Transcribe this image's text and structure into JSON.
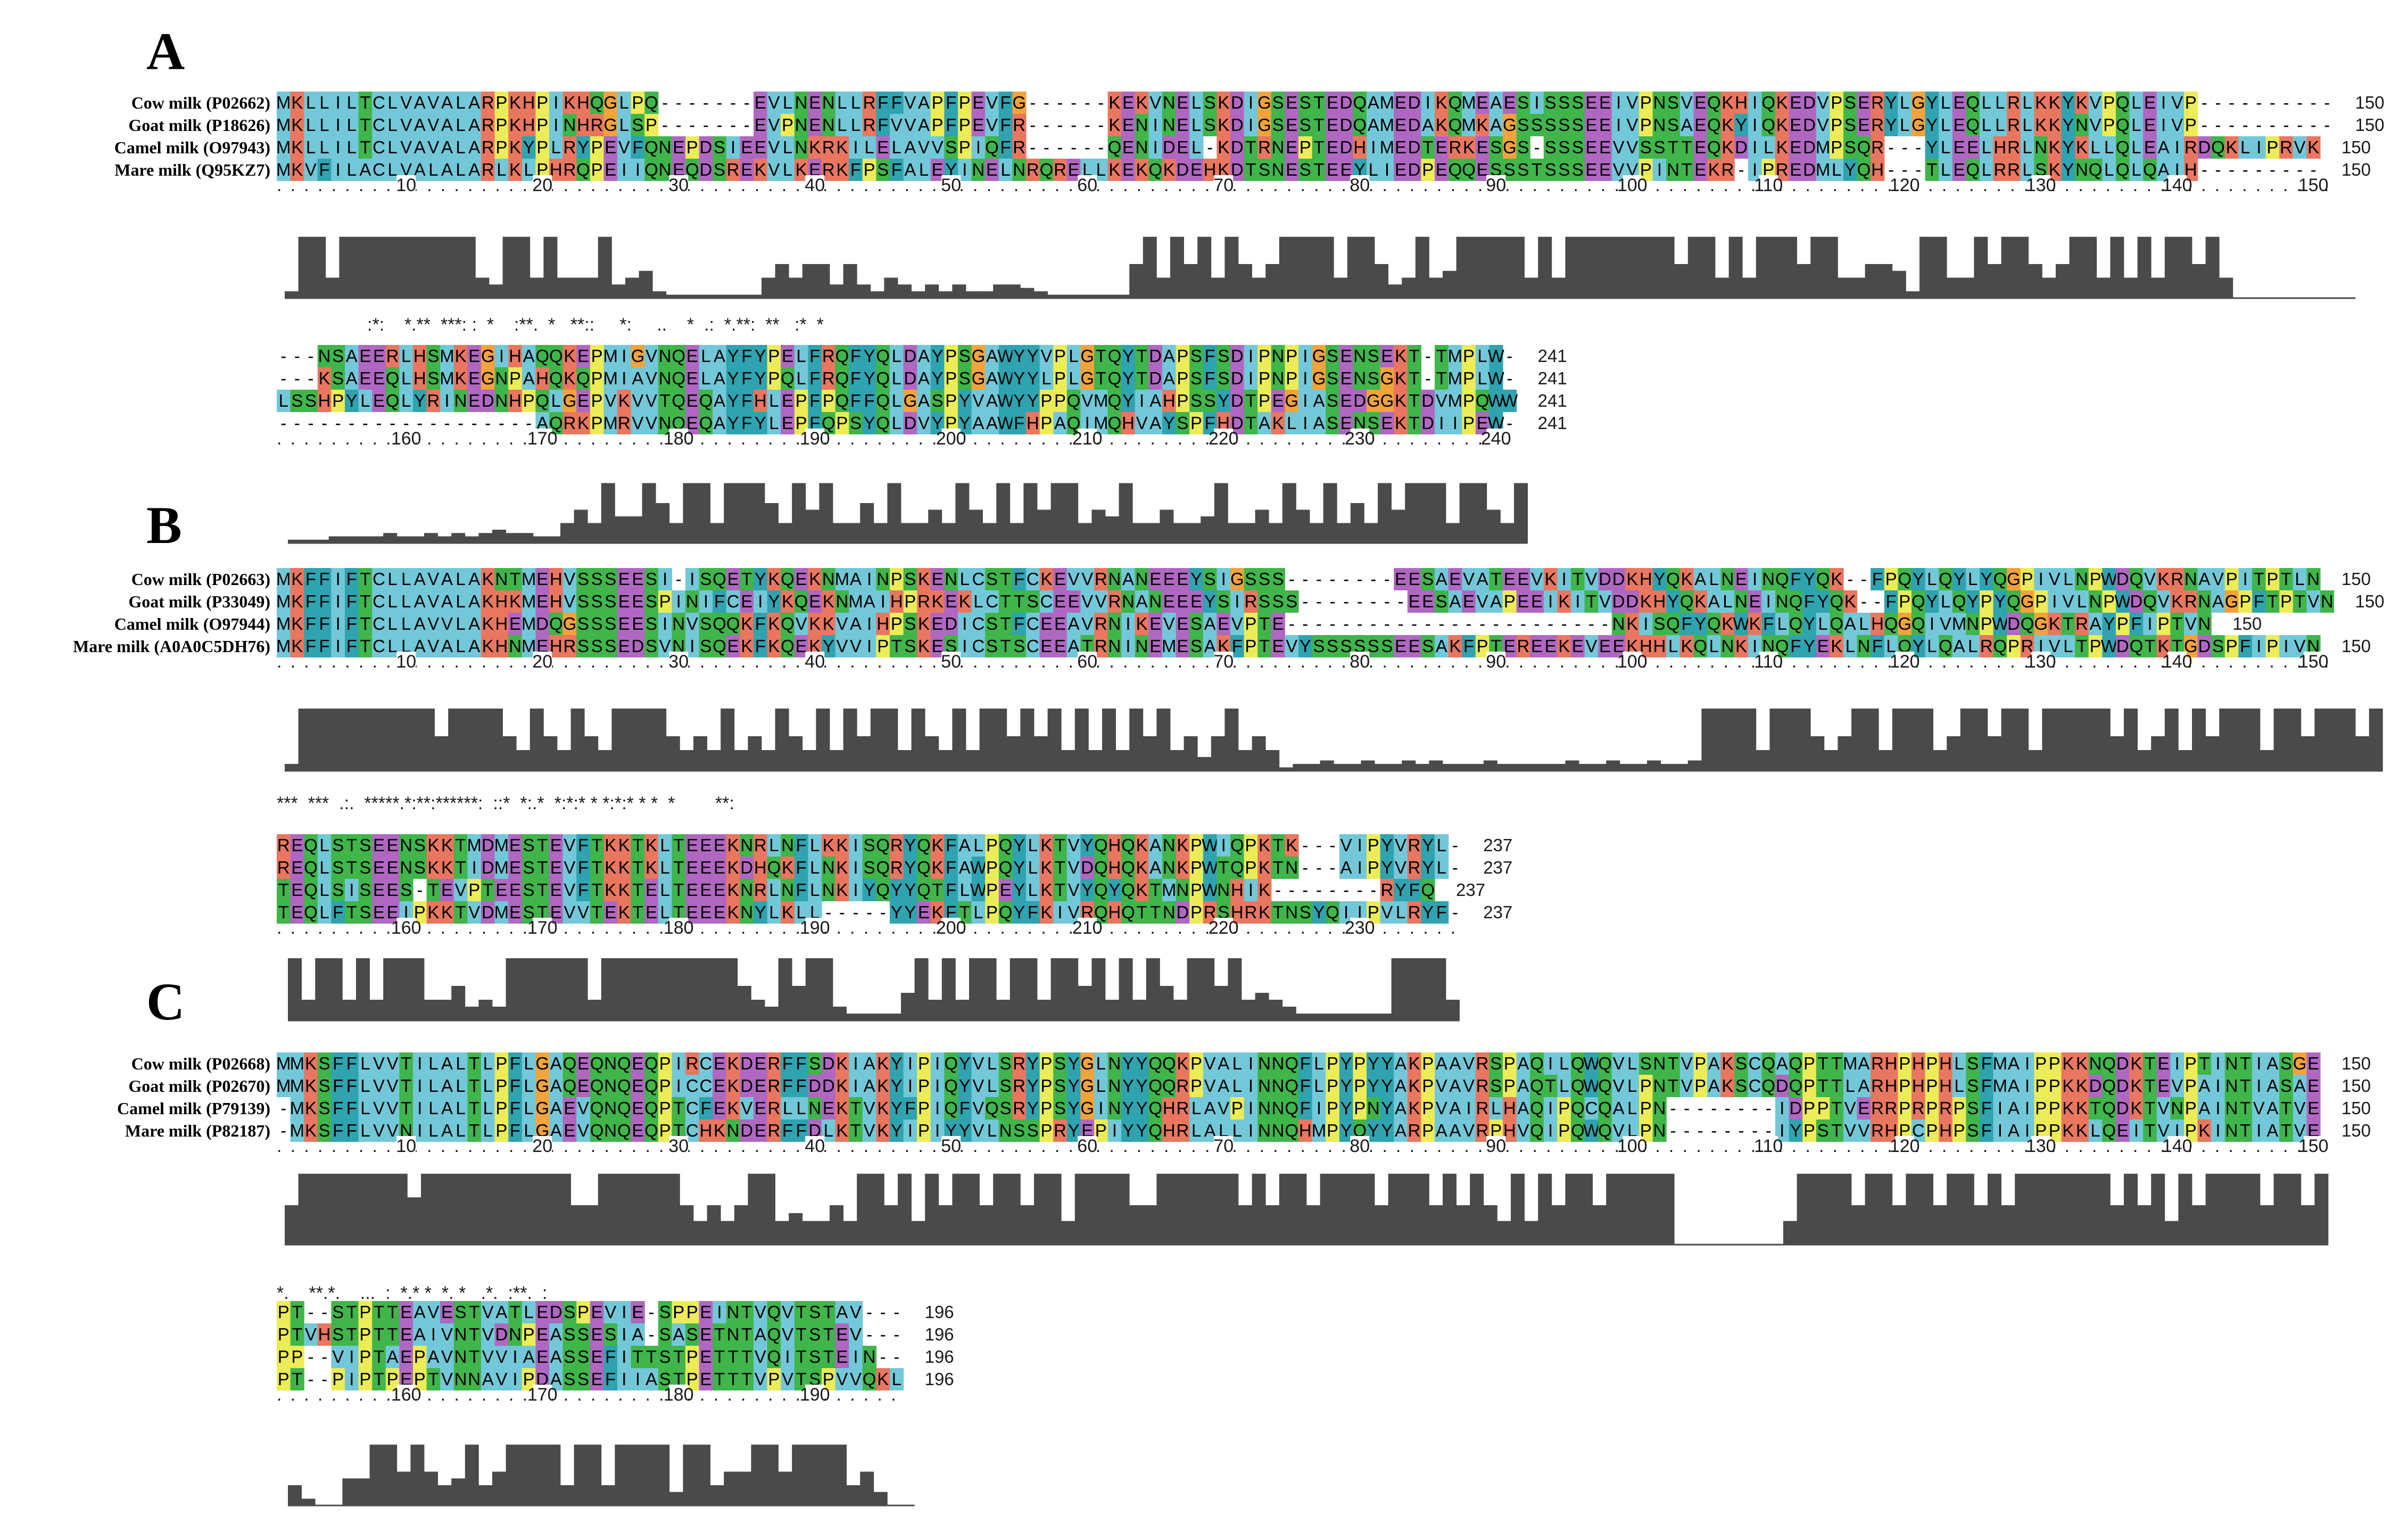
{
  "colors": {
    "hydrophobic": "#72c8d8",
    "charged_positive": "#e9765f",
    "charged_negative": "#b067c2",
    "polar": "#3fb54a",
    "glycine": "#f2a33c",
    "proline": "#ecec58",
    "aromatic": "#2fa3b0",
    "conservation_bar": "#4a4a4a"
  },
  "panels": [
    {
      "letter": "A",
      "length_label": "241",
      "rows": [
        {
          "names": [
            "Cow milk (P02662)",
            "Goat milk (P18626)",
            "Camel milk (O97943)",
            "Mare milk (Q95KZ7)"
          ],
          "seqs": [
            "MKLLILTCLVAVALARPKHPIKHQGLPQ-------EVLNENLLRFFVAPFPEVFG------KEKVNELSKDIGSESTEDQAMEDIKQMEAESISSSEEIVPNSVEQKHIQKEDVPSERYLGYLEQLLRLKKYKVPQLEIVP----------",
            "MKLLILTCLVAVALARPKHPINHRGLSP-------EVPNENLLRFVVAPFPEVFR------KENINELSKDIGSESTEDQAMEDAKQMKAGSSSSSEEIVPNSAEQKYIQKEDVPSERYLGYLEQLLRLKKYNVPQLEIVP----------",
            "MKLLILTCLVAVALARPKYPLRYPEVFQNEPDSIEEVLNKRKILELAVVSPIQFR------QENIDEL-KDTRNEPTEDHIMEDTERKESGS-SSSEEVVSSTTEQKDILKEDMPSQR---YLEELHRLNKYKLLQLEAIRDQKLIPRVK",
            "MKVFILACLVALALARLKLPHRQPEIIQNEQDSREKVLKERKFPSFALEYINELNRQRELLKEKQKDEHKDTSNESTEEYLIEDPEQQESSSTSSSEEVVPINTEKR-IPREDMLYQH---TLEQLRRLSKYNQLQLQAIH---------"
          ],
          "ticks": [
            "10",
            "20",
            "30",
            "40",
            "50",
            "60",
            "70",
            "80",
            "90",
            "100",
            "110",
            "120",
            "130",
            "140",
            "150"
          ],
          "end_label": "150",
          "consensus": "",
          "conservation": [
            0.1,
            0.9,
            0.9,
            0.3,
            0.9,
            0.9,
            0.9,
            0.9,
            0.9,
            0.9,
            0.9,
            0.9,
            0.9,
            0.9,
            0.3,
            0.2,
            0.9,
            0.9,
            0.3,
            0.9,
            0.3,
            0.3,
            0.3,
            0.9,
            0.2,
            0.3,
            0.4,
            0.1,
            0.05,
            0.05,
            0.05,
            0.05,
            0.05,
            0.05,
            0.05,
            0.3,
            0.5,
            0.3,
            0.5,
            0.5,
            0.2,
            0.5,
            0.2,
            0.1,
            0.3,
            0.2,
            0.1,
            0.2,
            0.1,
            0.2,
            0.1,
            0.1,
            0.2,
            0.2,
            0.15,
            0.1,
            0.05,
            0.05,
            0.05,
            0.05,
            0.05,
            0.05,
            0.5,
            0.9,
            0.3,
            0.9,
            0.5,
            0.9,
            0.3,
            0.9,
            0.5,
            0.3,
            0.5,
            0.9,
            0.9,
            0.9,
            0.9,
            0.3,
            0.9,
            0.9,
            0.5,
            0.2,
            0.3,
            0.9,
            0.3,
            0.4,
            0.9,
            0.9,
            0.9,
            0.9,
            0.9,
            0.3,
            0.9,
            0.3,
            0.9,
            0.9,
            0.9,
            0.9,
            0.9,
            0.9,
            0.9,
            0.9,
            0.5,
            0.9,
            0.9,
            0.3,
            0.9,
            0.3,
            0.9,
            0.9,
            0.9,
            0.5,
            0.9,
            0.9,
            0.3,
            0.3,
            0.5,
            0.5,
            0.4,
            0.1,
            0.9,
            0.9,
            0.3,
            0.3,
            0.9,
            0.5,
            0.9,
            0.9,
            0.5,
            0.3,
            0.5,
            0.9,
            0.9,
            0.3,
            0.9,
            0.3,
            0.9,
            0.3,
            0.9,
            0.9,
            0.5,
            0.9,
            0.3,
            0.0,
            0.0,
            0.0,
            0.0,
            0.0,
            0.0,
            0.0,
            0.0,
            0.0
          ]
        },
        {
          "names": [
            "",
            "",
            "",
            ""
          ],
          "seqs": [
            "---NSAEERLHSMKEGIHAQQKEPMIGVNQELAYFYPELFRQFYQLDAYPSGAWYYVPLGTQYTDAPSFSDIPNPIGSENSEKT-TMPLW-",
            "---KSAEEQLHSMKEGNPAHQKQPMIAVNQELAYFYPQLFRQFYQLDAYPSGAWYYLPLGTQYTDAPSFSDIPNPIGSENSGKT-TMPLW-",
            "LSSHPYLEQLYRINEDNHPQLGEPVKVVTQEQAYFHLEPFPQFFQLGASPYVAWYYPPQVMQYIAHPSSYDTPEGIASEDGGKTDVMPQWW",
            "-------------------AQRKPMRVVNQEQAYFYLEPFQPSYQLDVYPYAAWFHPAQIMQHVAYSPFHDTAKLIASENSEKTDIIPEW-"
          ],
          "ticks": [
            "160",
            "170",
            "180",
            "190",
            "200",
            "210",
            "220",
            "230",
            "240"
          ],
          "end_label": "241",
          "consensus": "                  :*:    *.**  ***: :  *    :**.  *   **::     *:     ..    *  .:  *.**:  **   :*  *",
          "conservation": [
            0.05,
            0.05,
            0.05,
            0.1,
            0.1,
            0.1,
            0.1,
            0.15,
            0.1,
            0.1,
            0.15,
            0.1,
            0.15,
            0.1,
            0.15,
            0.2,
            0.15,
            0.15,
            0.1,
            0.1,
            0.3,
            0.5,
            0.3,
            0.9,
            0.4,
            0.4,
            0.9,
            0.6,
            0.3,
            0.9,
            0.9,
            0.3,
            0.9,
            0.9,
            0.9,
            0.6,
            0.3,
            0.9,
            0.5,
            0.9,
            0.3,
            0.3,
            0.6,
            0.3,
            0.9,
            0.3,
            0.3,
            0.5,
            0.3,
            0.9,
            0.5,
            0.3,
            0.9,
            0.3,
            0.9,
            0.5,
            0.9,
            0.9,
            0.3,
            0.5,
            0.4,
            0.9,
            0.3,
            0.3,
            0.5,
            0.3,
            0.3,
            0.4,
            0.9,
            0.3,
            0.3,
            0.5,
            0.3,
            0.9,
            0.5,
            0.3,
            0.9,
            0.3,
            0.6,
            0.3,
            0.9,
            0.5,
            0.9,
            0.9,
            0.9,
            0.3,
            0.9,
            0.9,
            0.5,
            0.3,
            0.9
          ]
        }
      ]
    },
    {
      "letter": "B",
      "length_label": "237",
      "rows": [
        {
          "names": [
            "Cow milk (P02663)",
            "Goat milk (P33049)",
            "Camel milk (O97944)",
            "Mare milk (A0A0C5DH76)"
          ],
          "seqs": [
            "MKFFIFTCLLAVALAKNTMEHVSSSEESI-ISQETYKQEKNMAINPSKENLCSTFCKEVVRNANEEEYSIGSSS--------EESAEVATEEVKITVDDKHYQKALNEINQFYQK--FPQYLQYLYQGPIVLNPWDQVKRNAVPITPTLN",
            "MKFFIFTCLLAVALAKHKMEHVSSSEESPINIFCEIYKQEKNMAIHPRKEKLCTTSCEEVVRNANEEEYSIRSSS--------EESAEVAPEEIKITVDDKHYQKALNEINQFYQK--FPQYLQYPYQGPIVLNPWDQVKRNAGPFTPTVN",
            "MKFFIFTCLLAVVLAKHEMDQGSSSEESINVSQQKFKQVKKVAIHPSKEDICSTFCEEAVRNIKEVESAEVPTE------------------------NKISQFYQKWKFLQYLQALHQGQIVMNPWDQGKTRAYPFIPTVN",
            "MKFFIFTCLLAVALAKHNMEHRSSSEDSVNISQEKFKQEKYVVIPTSKESICSTSCEEATRNINEMESAKFPTEVYSSSSSSEESAKFPTEREEKEVEEKHHLKQLNKINQFYEKLNFLQYLQALRQPRIVLTPWDQTKTGDSPFIPIVN"
          ],
          "ticks": [
            "10",
            "20",
            "30",
            "40",
            "50",
            "60",
            "70",
            "80",
            "90",
            "100",
            "110",
            "120",
            "130",
            "140",
            "150"
          ],
          "end_label": "150",
          "consensus": "",
          "conservation": [
            0.1,
            0.9,
            0.9,
            0.9,
            0.9,
            0.9,
            0.9,
            0.9,
            0.9,
            0.9,
            0.9,
            0.5,
            0.9,
            0.9,
            0.9,
            0.9,
            0.5,
            0.3,
            0.9,
            0.5,
            0.3,
            0.9,
            0.5,
            0.3,
            0.9,
            0.9,
            0.9,
            0.9,
            0.5,
            0.3,
            0.5,
            0.3,
            0.9,
            0.3,
            0.5,
            0.3,
            0.9,
            0.5,
            0.3,
            0.9,
            0.3,
            0.9,
            0.5,
            0.9,
            0.9,
            0.3,
            0.9,
            0.5,
            0.3,
            0.9,
            0.3,
            0.9,
            0.9,
            0.5,
            0.9,
            0.5,
            0.9,
            0.3,
            0.9,
            0.3,
            0.9,
            0.3,
            0.9,
            0.5,
            0.9,
            0.3,
            0.5,
            0.2,
            0.5,
            0.9,
            0.3,
            0.5,
            0.3,
            0.05,
            0.1,
            0.1,
            0.15,
            0.1,
            0.1,
            0.15,
            0.1,
            0.1,
            0.15,
            0.1,
            0.15,
            0.1,
            0.1,
            0.1,
            0.15,
            0.1,
            0.1,
            0.1,
            0.1,
            0.1,
            0.15,
            0.1,
            0.1,
            0.15,
            0.1,
            0.1,
            0.15,
            0.1,
            0.1,
            0.15,
            0.9,
            0.9,
            0.9,
            0.9,
            0.3,
            0.9,
            0.9,
            0.9,
            0.5,
            0.3,
            0.5,
            0.9,
            0.9,
            0.3,
            0.9,
            0.9,
            0.9,
            0.3,
            0.5,
            0.9,
            0.9,
            0.5,
            0.9,
            0.9,
            0.3,
            0.9,
            0.9,
            0.9,
            0.9,
            0.9,
            0.5,
            0.9,
            0.3,
            0.5,
            0.9,
            0.3,
            0.9,
            0.5,
            0.9,
            0.9,
            0.9,
            0.3,
            0.9,
            0.9,
            0.5,
            0.9,
            0.9,
            0.9,
            0.5,
            0.9
          ]
        },
        {
          "names": [
            "",
            "",
            "",
            ""
          ],
          "seqs": [
            "REQLSTSEENSKKTMDMESTEVFTKKTKLTEEEKNRLNFLKKISQRYQKFALPQYLKTVYQHQKANKPWIQPKTK---VIPYVRYL-",
            "REQLSTSEENSKKTIDMESTEVFTKKTKLTEEEKDHQKFLNKISQRYQKFAWPQYLKTVDQHQKANKPWTQPKTN---AIPYVRYL-",
            "TEQLSISEES-TEVPTEESTEVFTKKTELTEEEKNRLNFLNKIYQYYQTFLWPEYLKTVYQYQKTMNPWNHIK--------RYFQ",
            "TEQLFTSEEIPKKTVDMESTEVVTEKTELTEEEKNYLKLL-----YYEKFTLPQYFKIVRQHQTTNDPRSHRKTNSYQIIPVLRYF-"
          ],
          "ticks": [
            "160",
            "170",
            "180",
            "190",
            "200",
            "210",
            "220",
            "230"
          ],
          "end_label": "237",
          "consensus": "***  ***  .:.  *****.*:**:******:  ::*  *:.*  *:*:* * *:*:* * *  *        **:",
          "conservation": [
            0.9,
            0.3,
            0.9,
            0.9,
            0.3,
            0.9,
            0.3,
            0.9,
            0.9,
            0.9,
            0.3,
            0.3,
            0.5,
            0.2,
            0.3,
            0.2,
            0.9,
            0.9,
            0.9,
            0.9,
            0.9,
            0.9,
            0.3,
            0.9,
            0.9,
            0.9,
            0.9,
            0.9,
            0.9,
            0.9,
            0.9,
            0.9,
            0.9,
            0.5,
            0.3,
            0.2,
            0.9,
            0.5,
            0.9,
            0.9,
            0.2,
            0.1,
            0.1,
            0.1,
            0.1,
            0.4,
            0.9,
            0.3,
            0.9,
            0.3,
            0.9,
            0.9,
            0.3,
            0.9,
            0.9,
            0.3,
            0.9,
            0.9,
            0.5,
            0.9,
            0.3,
            0.9,
            0.3,
            0.9,
            0.5,
            0.3,
            0.9,
            0.9,
            0.5,
            0.9,
            0.3,
            0.4,
            0.3,
            0.2,
            0.1,
            0.1,
            0.1,
            0.1,
            0.1,
            0.1,
            0.1,
            0.9,
            0.9,
            0.9,
            0.9,
            0.3
          ]
        }
      ]
    },
    {
      "letter": "C",
      "length_label": "196",
      "rows": [
        {
          "names": [
            "Cow milk (P02668)",
            "Goat milk (P02670)",
            "Camel milk (P79139)",
            "Mare milk (P82187)"
          ],
          "seqs": [
            "MMKSFFLVVTILALTLPFLGAQEQNQEQPIRCEKDERFFSDKIAKYIPIQYVLSRYPSYGLNYYQQKPVALINNQFLPYPYYAKPAAVRSPAQILQWQVLSNTVPAKSCQAQPTTMARHPHPHLSFMAIPPKKNQDKTEIPTINTIASGE",
            "MMKSFFLVVTILALTLPFLGAQEQNQEQPICCEKDERFFDDKIAKYIPIQYVLSRYPSYGLNYYQQRPVALINNQFLPYPYYAKPVAVRSPAQTLQWQVLPNTVPAKSCQDQPTTLARHPHPHLSFMAIPPKKDQDKTEVPAINTIASAE",
            "-MKSFFLVVTILALTLPFLGAEVQNQEQPTCFEKVERLLNEKTVKYFPIQFVQSRYPSYGINYYQHRLAVPINNQFIPYPNYAKPVAIRLHAQIPQCQALPN--------IDPPTVERRPRPRPSFIAIPPKKTQDKTVNPAINTVATVE",
            "-MKSFFLVVNILALTLPFLGAEVQNQEQPTCHKNDERFFDLKTVKYIPIYYVLNSSPRYEPIYYQHRLALLINNQHMPYQYYARPAAVRPHVQIPQWQVLPN--------IYPSTVVRHPCPHPSFIAIPPKKLQEITVIPKINTIATVE"
          ],
          "ticks": [
            "10",
            "20",
            "30",
            "40",
            "50",
            "60",
            "70",
            "80",
            "90",
            "100",
            "110",
            "120",
            "130",
            "140",
            "150"
          ],
          "end_label": "150",
          "consensus": "",
          "conservation": [
            0.5,
            0.9,
            0.9,
            0.9,
            0.9,
            0.9,
            0.9,
            0.9,
            0.9,
            0.6,
            0.9,
            0.9,
            0.9,
            0.9,
            0.9,
            0.9,
            0.9,
            0.9,
            0.9,
            0.9,
            0.9,
            0.5,
            0.5,
            0.9,
            0.9,
            0.9,
            0.9,
            0.9,
            0.9,
            0.5,
            0.3,
            0.5,
            0.3,
            0.5,
            0.9,
            0.9,
            0.3,
            0.4,
            0.3,
            0.3,
            0.5,
            0.3,
            0.9,
            0.9,
            0.5,
            0.9,
            0.3,
            0.9,
            0.5,
            0.9,
            0.9,
            0.5,
            0.9,
            0.9,
            0.5,
            0.9,
            0.9,
            0.3,
            0.9,
            0.9,
            0.9,
            0.9,
            0.5,
            0.5,
            0.9,
            0.9,
            0.9,
            0.9,
            0.9,
            0.9,
            0.5,
            0.9,
            0.5,
            0.9,
            0.9,
            0.5,
            0.9,
            0.9,
            0.9,
            0.9,
            0.5,
            0.9,
            0.9,
            0.9,
            0.5,
            0.9,
            0.5,
            0.9,
            0.5,
            0.3,
            0.9,
            0.3,
            0.9,
            0.5,
            0.9,
            0.9,
            0.5,
            0.9,
            0.9,
            0.9,
            0.9,
            0.9,
            0.0,
            0.0,
            0.0,
            0.0,
            0.0,
            0.0,
            0.0,
            0.0,
            0.3,
            0.9,
            0.9,
            0.9,
            0.9,
            0.5,
            0.9,
            0.9,
            0.5,
            0.9,
            0.9,
            0.5,
            0.9,
            0.9,
            0.5,
            0.9,
            0.5,
            0.9,
            0.9,
            0.9,
            0.9,
            0.9,
            0.9,
            0.9,
            0.5,
            0.9,
            0.5,
            0.9,
            0.3,
            0.9,
            0.5,
            0.9,
            0.9,
            0.9,
            0.9,
            0.5,
            0.9,
            0.9,
            0.5,
            0.9
          ]
        },
        {
          "names": [
            "",
            "",
            "",
            ""
          ],
          "seqs": [
            "PT--STPTTEAVESTVATLEDSPEVIE-SPPEINTVQVTSTAV---",
            "PTVHSTPTTEAIVNTVDNPEASSESIA-SASETNTAQVTSTEV---",
            "PP--VIPTAEPAVNTVVIAEASSEFITTSTPETTTVQITSTEIN--",
            "PT--PIPTPEPTVNNAVIPDASSEFIIASTPETTTVPVTSPVVQKL"
          ],
          "ticks": [
            "160",
            "170",
            "180",
            "190"
          ],
          "end_label": "196",
          "consensus": "*.    **.*.    ...  :  *.* *  *. *   .*.  :**.  :",
          "conservation": [
            0.3,
            0.1,
            0.0,
            0.0,
            0.4,
            0.4,
            0.9,
            0.9,
            0.5,
            0.9,
            0.5,
            0.3,
            0.4,
            0.9,
            0.3,
            0.5,
            0.9,
            0.9,
            0.9,
            0.9,
            0.3,
            0.9,
            0.9,
            0.3,
            0.9,
            0.9,
            0.9,
            0.9,
            0.2,
            0.9,
            0.9,
            0.3,
            0.5,
            0.5,
            0.9,
            0.9,
            0.5,
            0.9,
            0.9,
            0.9,
            0.9,
            0.3,
            0.5,
            0.2,
            0.0,
            0.0
          ]
        }
      ]
    }
  ]
}
